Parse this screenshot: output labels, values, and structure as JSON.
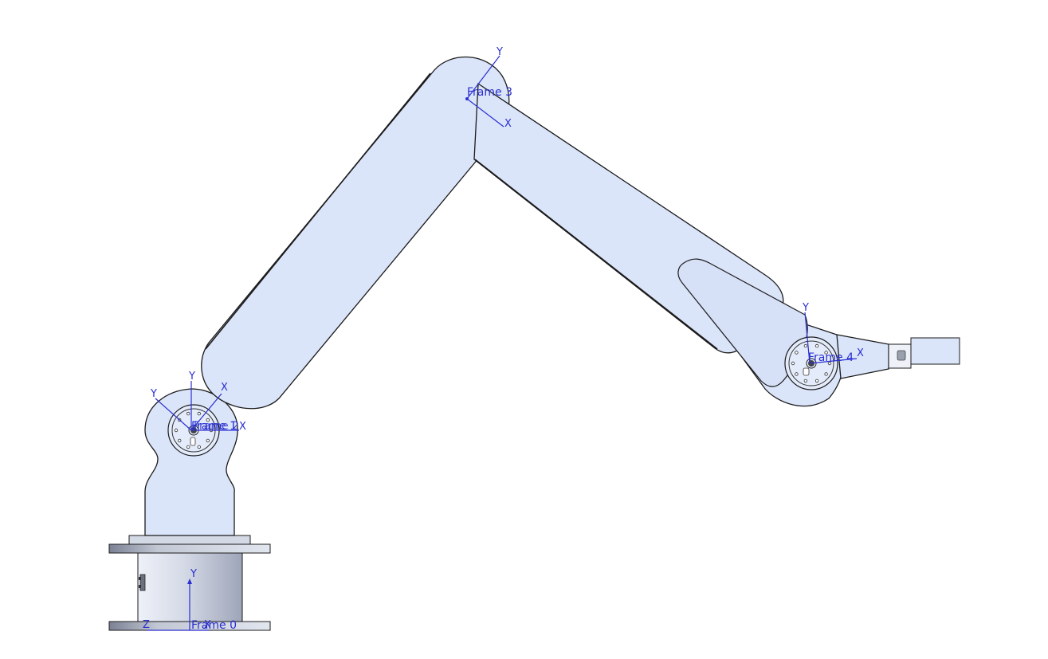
{
  "frames": [
    {
      "id": "frame0",
      "label": "Frame 0",
      "axes": [
        "Y",
        "Z",
        "X"
      ]
    },
    {
      "id": "frame1",
      "label": "Frame 1",
      "axes": [
        "Y",
        "X",
        "Y",
        "X"
      ]
    },
    {
      "id": "frame2",
      "label": "Frame 2",
      "axes": [
        "X"
      ]
    },
    {
      "id": "frame3",
      "label": "Frame 3",
      "axes": [
        "Y",
        "X"
      ]
    },
    {
      "id": "frame4",
      "label": "Frame 4",
      "axes": [
        "Y",
        "X"
      ]
    }
  ],
  "colors": {
    "link_fill": "#dbe5fa",
    "outline": "#1b1b1b",
    "axis": "#2a2fd0",
    "base_metal": "#c9cede",
    "flange": "#9da3b3",
    "background": "#ffffff"
  }
}
